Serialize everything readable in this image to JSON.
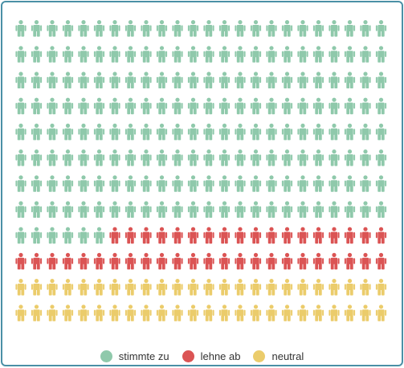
{
  "chart_data": {
    "type": "waffle",
    "rows": 12,
    "columns": 24,
    "unit_icon": "person-icon",
    "series": [
      {
        "name": "stimmte zu",
        "count": 198,
        "color": "#8fc9ab"
      },
      {
        "name": "lehne ab",
        "count": 42,
        "color": "#db5454"
      },
      {
        "name": "neutral",
        "count": 48,
        "color": "#ebcc6b"
      }
    ],
    "legend_position": "bottom-center"
  }
}
